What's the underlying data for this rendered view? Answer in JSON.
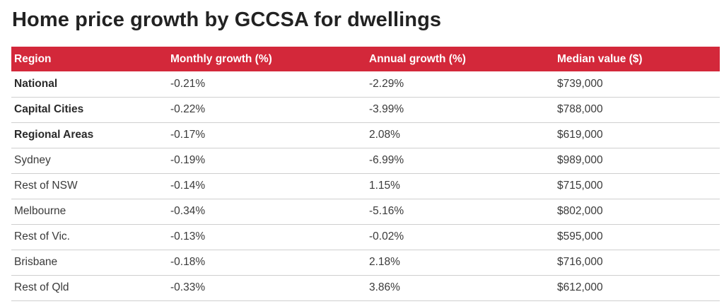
{
  "title": "Home price growth by GCCSA for dwellings",
  "chart_data": {
    "type": "table",
    "title": "Home price growth by GCCSA for dwellings",
    "columns": [
      "Region",
      "Monthly growth (%)",
      "Annual growth (%)",
      "Median value ($)"
    ],
    "rows": [
      {
        "region": "National",
        "monthly": "-0.21%",
        "annual": "-2.29%",
        "median": "$739,000",
        "bold": true
      },
      {
        "region": "Capital Cities",
        "monthly": "-0.22%",
        "annual": "-3.99%",
        "median": "$788,000",
        "bold": true
      },
      {
        "region": "Regional Areas",
        "monthly": "-0.17%",
        "annual": "2.08%",
        "median": "$619,000",
        "bold": true
      },
      {
        "region": "Sydney",
        "monthly": "-0.19%",
        "annual": "-6.99%",
        "median": "$989,000",
        "bold": false
      },
      {
        "region": "Rest of NSW",
        "monthly": "-0.14%",
        "annual": "1.15%",
        "median": "$715,000",
        "bold": false
      },
      {
        "region": "Melbourne",
        "monthly": "-0.34%",
        "annual": "-5.16%",
        "median": "$802,000",
        "bold": false
      },
      {
        "region": "Rest of Vic.",
        "monthly": "-0.13%",
        "annual": "-0.02%",
        "median": "$595,000",
        "bold": false
      },
      {
        "region": "Brisbane",
        "monthly": "-0.18%",
        "annual": "2.18%",
        "median": "$716,000",
        "bold": false
      },
      {
        "region": "Rest of Qld",
        "monthly": "-0.33%",
        "annual": "3.86%",
        "median": "$612,000",
        "bold": false
      }
    ]
  },
  "colors": {
    "header_bg": "#d3283a",
    "header_text": "#ffffff",
    "row_divider": "#cfcfcf"
  }
}
